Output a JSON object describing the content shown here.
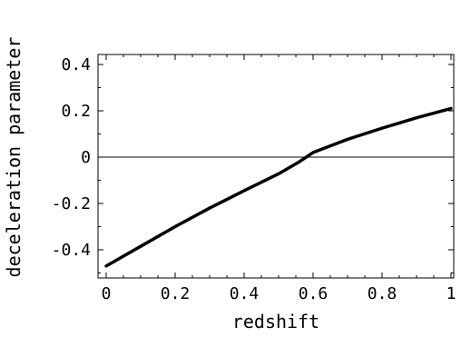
{
  "chart_data": {
    "type": "line",
    "title": "",
    "xlabel": "redshift",
    "ylabel": "deceleration parameter",
    "xlim": [
      0,
      1
    ],
    "ylim": [
      -0.55,
      0.5
    ],
    "x_ticks": [
      0,
      0.2,
      0.4,
      0.6,
      0.8,
      1
    ],
    "x_tick_labels": [
      "0",
      "0.2",
      "0.4",
      "0.6",
      "0.8",
      "1"
    ],
    "y_ticks": [
      -0.4,
      -0.2,
      0,
      0.2,
      0.4
    ],
    "y_tick_labels": [
      "-0.4",
      "-0.2",
      "0",
      "0.2",
      "0.4"
    ],
    "zero_line": true,
    "grid": false,
    "series": [
      {
        "x": [
          0,
          0.1,
          0.2,
          0.3,
          0.4,
          0.5,
          0.56,
          0.6,
          0.7,
          0.8,
          0.9,
          1.0
        ],
        "y": [
          -0.47,
          -0.385,
          -0.3,
          -0.22,
          -0.145,
          -0.072,
          -0.02,
          0.02,
          0.077,
          0.125,
          0.17,
          0.21
        ]
      }
    ]
  }
}
